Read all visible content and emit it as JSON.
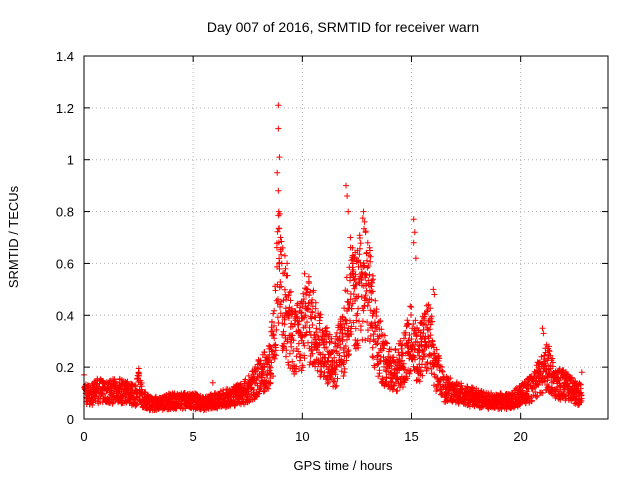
{
  "chart_data": {
    "type": "scatter",
    "title": "Day 007 of 2016, SRMTID for receiver warn",
    "xlabel": "GPS time / hours",
    "ylabel": "SRMTID / TECUs",
    "xlim": [
      0,
      24
    ],
    "ylim": [
      0,
      1.4
    ],
    "x_ticks": [
      0,
      5,
      10,
      15,
      20
    ],
    "x_tick_labels": [
      "0",
      "5",
      "10",
      "15",
      "20"
    ],
    "y_ticks": [
      0,
      0.2,
      0.4,
      0.6,
      0.8,
      1.0,
      1.2,
      1.4
    ],
    "y_tick_labels": [
      "0",
      "0.2",
      "0.4",
      "0.6",
      "0.8",
      "1",
      "1.2",
      "1.4"
    ],
    "grid": true,
    "marker": "+",
    "series": [
      {
        "name": "SRMTID",
        "color": "#ff0000",
        "profile": [
          [
            0.0,
            0.1
          ],
          [
            0.3,
            0.09
          ],
          [
            0.6,
            0.11
          ],
          [
            1.0,
            0.1
          ],
          [
            1.5,
            0.11
          ],
          [
            2.0,
            0.1
          ],
          [
            2.4,
            0.09
          ],
          [
            2.5,
            0.14
          ],
          [
            2.7,
            0.08
          ],
          [
            3.0,
            0.06
          ],
          [
            3.5,
            0.06
          ],
          [
            4.0,
            0.07
          ],
          [
            4.5,
            0.07
          ],
          [
            5.0,
            0.07
          ],
          [
            5.5,
            0.06
          ],
          [
            6.0,
            0.07
          ],
          [
            6.5,
            0.08
          ],
          [
            7.0,
            0.09
          ],
          [
            7.5,
            0.11
          ],
          [
            8.0,
            0.16
          ],
          [
            8.4,
            0.19
          ],
          [
            8.7,
            0.3
          ],
          [
            8.9,
            0.6
          ],
          [
            9.1,
            0.48
          ],
          [
            9.4,
            0.36
          ],
          [
            9.7,
            0.3
          ],
          [
            10.0,
            0.33
          ],
          [
            10.3,
            0.38
          ],
          [
            10.6,
            0.33
          ],
          [
            11.0,
            0.25
          ],
          [
            11.5,
            0.22
          ],
          [
            11.9,
            0.3
          ],
          [
            12.2,
            0.5
          ],
          [
            12.5,
            0.45
          ],
          [
            12.8,
            0.55
          ],
          [
            13.1,
            0.45
          ],
          [
            13.4,
            0.3
          ],
          [
            13.8,
            0.22
          ],
          [
            14.2,
            0.18
          ],
          [
            14.6,
            0.22
          ],
          [
            15.0,
            0.32
          ],
          [
            15.3,
            0.24
          ],
          [
            15.8,
            0.33
          ],
          [
            16.1,
            0.2
          ],
          [
            16.5,
            0.12
          ],
          [
            17.0,
            0.1
          ],
          [
            17.5,
            0.09
          ],
          [
            18.0,
            0.08
          ],
          [
            18.5,
            0.07
          ],
          [
            19.0,
            0.07
          ],
          [
            19.5,
            0.07
          ],
          [
            20.0,
            0.09
          ],
          [
            20.5,
            0.12
          ],
          [
            20.9,
            0.17
          ],
          [
            21.2,
            0.2
          ],
          [
            21.6,
            0.14
          ],
          [
            22.0,
            0.13
          ],
          [
            22.4,
            0.11
          ],
          [
            22.8,
            0.09
          ]
        ],
        "spikes": [
          [
            8.9,
            1.21
          ],
          [
            8.9,
            1.12
          ],
          [
            8.95,
            1.01
          ],
          [
            8.85,
            0.95
          ],
          [
            8.9,
            0.88
          ],
          [
            8.92,
            0.8
          ],
          [
            9.0,
            0.7
          ],
          [
            9.1,
            0.66
          ],
          [
            9.2,
            0.63
          ],
          [
            9.3,
            0.6
          ],
          [
            10.1,
            0.56
          ],
          [
            10.2,
            0.5
          ],
          [
            12.0,
            0.9
          ],
          [
            12.05,
            0.86
          ],
          [
            12.1,
            0.8
          ],
          [
            12.2,
            0.7
          ],
          [
            12.3,
            0.66
          ],
          [
            12.4,
            0.62
          ],
          [
            12.8,
            0.8
          ],
          [
            12.85,
            0.76
          ],
          [
            12.9,
            0.72
          ],
          [
            13.0,
            0.68
          ],
          [
            13.1,
            0.65
          ],
          [
            15.1,
            0.77
          ],
          [
            15.15,
            0.72
          ],
          [
            15.1,
            0.68
          ],
          [
            15.2,
            0.62
          ],
          [
            16.0,
            0.5
          ],
          [
            16.05,
            0.48
          ],
          [
            21.0,
            0.35
          ],
          [
            21.05,
            0.33
          ],
          [
            21.3,
            0.28
          ],
          [
            2.5,
            0.18
          ],
          [
            0.0,
            0.17
          ],
          [
            22.8,
            0.18
          ],
          [
            5.9,
            0.14
          ],
          [
            8.5,
            0.28
          ],
          [
            8.6,
            0.26
          ]
        ]
      }
    ]
  }
}
